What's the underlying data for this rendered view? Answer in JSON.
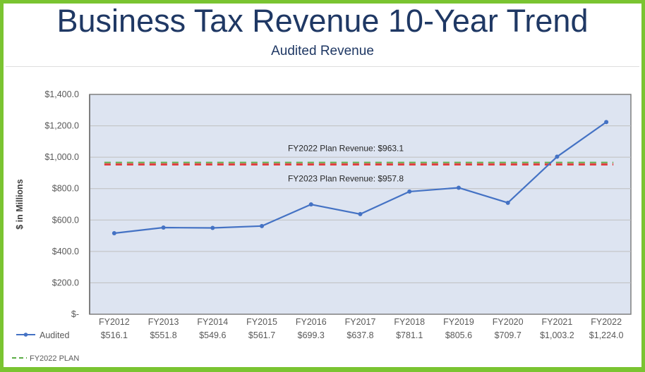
{
  "header": {
    "title": "Business Tax Revenue 10-Year Trend",
    "subtitle": "Audited Revenue"
  },
  "colors": {
    "frame": "#7ac431",
    "title": "#1f3864",
    "plot_background": "#dde4f1",
    "gridline": "#bfbfbf",
    "audited_line": "#4472c4",
    "fy2022_plan": "#5aac44",
    "fy2023_plan": "#e03c3c"
  },
  "chart_data": {
    "type": "line",
    "title": "Business Tax Revenue 10-Year Trend",
    "subtitle": "Audited Revenue",
    "xlabel": "",
    "ylabel": "$ in Millions",
    "categories": [
      "FY2012",
      "FY2013",
      "FY2014",
      "FY2015",
      "FY2016",
      "FY2017",
      "FY2018",
      "FY2019",
      "FY2020",
      "FY2021",
      "FY2022"
    ],
    "ylim": [
      0,
      1400
    ],
    "yticks": [
      0,
      200,
      400,
      600,
      800,
      1000,
      1200,
      1400
    ],
    "ytick_labels": [
      "$-",
      "$200.0",
      "$400.0",
      "$600.0",
      "$800.0",
      "$1,000.0",
      "$1,200.0",
      "$1,400.0"
    ],
    "grid": true,
    "series": [
      {
        "name": "Audited",
        "style": "solid-with-markers",
        "values": [
          516.1,
          551.8,
          549.6,
          561.7,
          699.3,
          637.8,
          781.1,
          805.6,
          709.7,
          1003.2,
          1224.0
        ],
        "value_labels": [
          "$516.1",
          "$551.8",
          "$549.6",
          "$561.7",
          "$699.3",
          "$637.8",
          "$781.1",
          "$805.6",
          "$709.7",
          "$1,003.2",
          "$1,224.0"
        ]
      },
      {
        "name": "FY2022 PLAN",
        "style": "dashed",
        "constant": 963.1
      },
      {
        "name": "FY2023 PLAN",
        "style": "dashed",
        "constant": 957.8
      }
    ],
    "annotations": [
      "FY2022 Plan Revenue: $963.1",
      "FY2023 Plan Revenue: $957.8"
    ],
    "legend": {
      "placement": "bottom-left",
      "entries": [
        "Audited",
        "FY2022 PLAN"
      ]
    },
    "data_table": true
  }
}
